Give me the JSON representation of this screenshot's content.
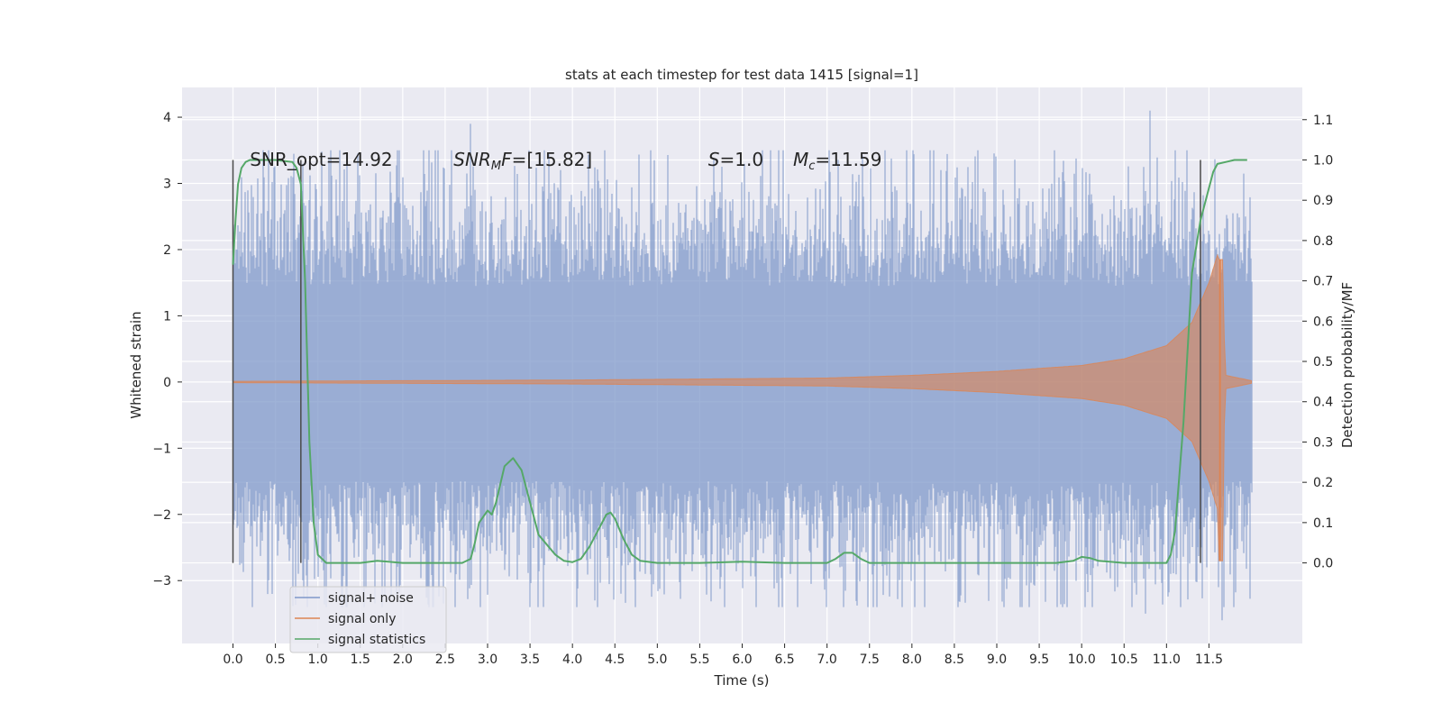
{
  "chart_data": {
    "type": "line",
    "title": "stats at each timestep for test data 1415 [signal=1]",
    "xlabel": "Time (s)",
    "ylabel": "Whitened strain",
    "y2label": "Detection probability/MF",
    "xlim": [
      -0.6,
      12.6
    ],
    "ylim": [
      -3.95,
      4.45
    ],
    "y2lim": [
      -0.2,
      1.18
    ],
    "xticks": [
      "0.0",
      "0.5",
      "1.0",
      "1.5",
      "2.0",
      "2.5",
      "3.0",
      "3.5",
      "4.0",
      "4.5",
      "5.0",
      "5.5",
      "6.0",
      "6.5",
      "7.0",
      "7.5",
      "8.0",
      "8.5",
      "9.0",
      "9.5",
      "10.0",
      "10.5",
      "11.0",
      "11.5"
    ],
    "yticks": [
      "−3",
      "−2",
      "−1",
      "0",
      "1",
      "2",
      "3",
      "4"
    ],
    "y2ticks": [
      "0.0",
      "0.1",
      "0.2",
      "0.3",
      "0.4",
      "0.5",
      "0.6",
      "0.7",
      "0.8",
      "0.9",
      "1.0",
      "1.1"
    ],
    "grid": true,
    "legend_position": "lower-left",
    "series": [
      {
        "name": "signal+ noise",
        "color": "#7f98c9",
        "axis": "left",
        "envelope": {
          "x": [
            0.0,
            12.0
          ],
          "typical_range": [
            -2.5,
            2.6
          ],
          "notable_peaks": [
            {
              "x": 2.8,
              "y": 3.9
            },
            {
              "x": 10.8,
              "y": 4.1
            },
            {
              "x": 11.65,
              "y": -3.6
            },
            {
              "x": 10.75,
              "y": -3.5
            },
            {
              "x": 3.5,
              "y": -3.4
            }
          ]
        }
      },
      {
        "name": "signal only",
        "color": "#dd8452",
        "axis": "left",
        "amplitude_envelope": [
          [
            0.0,
            0.01
          ],
          [
            4.0,
            0.03
          ],
          [
            7.0,
            0.06
          ],
          [
            8.0,
            0.1
          ],
          [
            9.0,
            0.16
          ],
          [
            10.0,
            0.25
          ],
          [
            10.5,
            0.35
          ],
          [
            11.0,
            0.55
          ],
          [
            11.3,
            0.9
          ],
          [
            11.5,
            1.5
          ],
          [
            11.62,
            2.0
          ],
          [
            11.66,
            1.2
          ],
          [
            11.7,
            0.1
          ],
          [
            12.0,
            0.02
          ]
        ],
        "peak": {
          "x": 11.63,
          "y": 1.85,
          "y_min": -2.7
        }
      },
      {
        "name": "signal statistics",
        "color": "#55a868",
        "axis": "right",
        "x": [
          0.0,
          0.03,
          0.06,
          0.1,
          0.15,
          0.2,
          0.3,
          0.5,
          0.7,
          0.75,
          0.8,
          0.85,
          0.9,
          0.95,
          1.0,
          1.1,
          1.2,
          1.5,
          1.7,
          2.0,
          2.5,
          2.7,
          2.8,
          2.85,
          2.9,
          3.0,
          3.05,
          3.1,
          3.2,
          3.3,
          3.4,
          3.5,
          3.6,
          3.8,
          3.9,
          4.0,
          4.1,
          4.2,
          4.3,
          4.4,
          4.45,
          4.5,
          4.6,
          4.7,
          4.8,
          5.0,
          5.5,
          6.0,
          6.5,
          7.0,
          7.1,
          7.2,
          7.3,
          7.4,
          7.5,
          8.0,
          9.0,
          9.7,
          9.9,
          10.0,
          10.1,
          10.2,
          10.5,
          11.0,
          11.05,
          11.1,
          11.2,
          11.3,
          11.4,
          11.5,
          11.55,
          11.6,
          11.7,
          11.8,
          11.9,
          11.95
        ],
        "y": [
          0.74,
          0.85,
          0.94,
          0.98,
          0.995,
          1.0,
          1.0,
          1.0,
          0.995,
          0.98,
          0.94,
          0.7,
          0.3,
          0.1,
          0.02,
          0.0,
          0.0,
          0.0,
          0.005,
          0.0,
          0.0,
          0.0,
          0.01,
          0.05,
          0.1,
          0.13,
          0.12,
          0.15,
          0.24,
          0.26,
          0.23,
          0.15,
          0.07,
          0.02,
          0.005,
          0.002,
          0.01,
          0.04,
          0.08,
          0.12,
          0.125,
          0.11,
          0.06,
          0.02,
          0.005,
          0.0,
          0.0,
          0.003,
          0.0,
          0.0,
          0.01,
          0.025,
          0.025,
          0.01,
          0.0,
          0.0,
          0.0,
          0.0,
          0.005,
          0.015,
          0.012,
          0.005,
          0.0,
          0.0,
          0.02,
          0.08,
          0.35,
          0.72,
          0.85,
          0.93,
          0.97,
          0.99,
          0.995,
          1.0,
          1.0,
          1.0
        ]
      }
    ],
    "vertical_lines": [
      {
        "x": 0.0,
        "y_from": 0.0,
        "y_to": 1.0
      },
      {
        "x": 0.8,
        "y_from": 0.0,
        "y_to": 1.0
      },
      {
        "x": 11.4,
        "y_from": 0.0,
        "y_to": 1.0
      }
    ],
    "annotations": [
      {
        "id": "snr-opt",
        "x": 0.2,
        "text": "SNR_opt=14.92"
      },
      {
        "id": "snr-mf",
        "x": 2.6,
        "base": "SNR",
        "sub": "M",
        "rest": "F=[15.82]"
      },
      {
        "id": "s-value",
        "x": 5.6,
        "base": "S",
        "rest": "=1.0"
      },
      {
        "id": "mc-value",
        "x": 6.6,
        "base": "M",
        "sub": "c",
        "rest": "=11.59"
      }
    ]
  }
}
